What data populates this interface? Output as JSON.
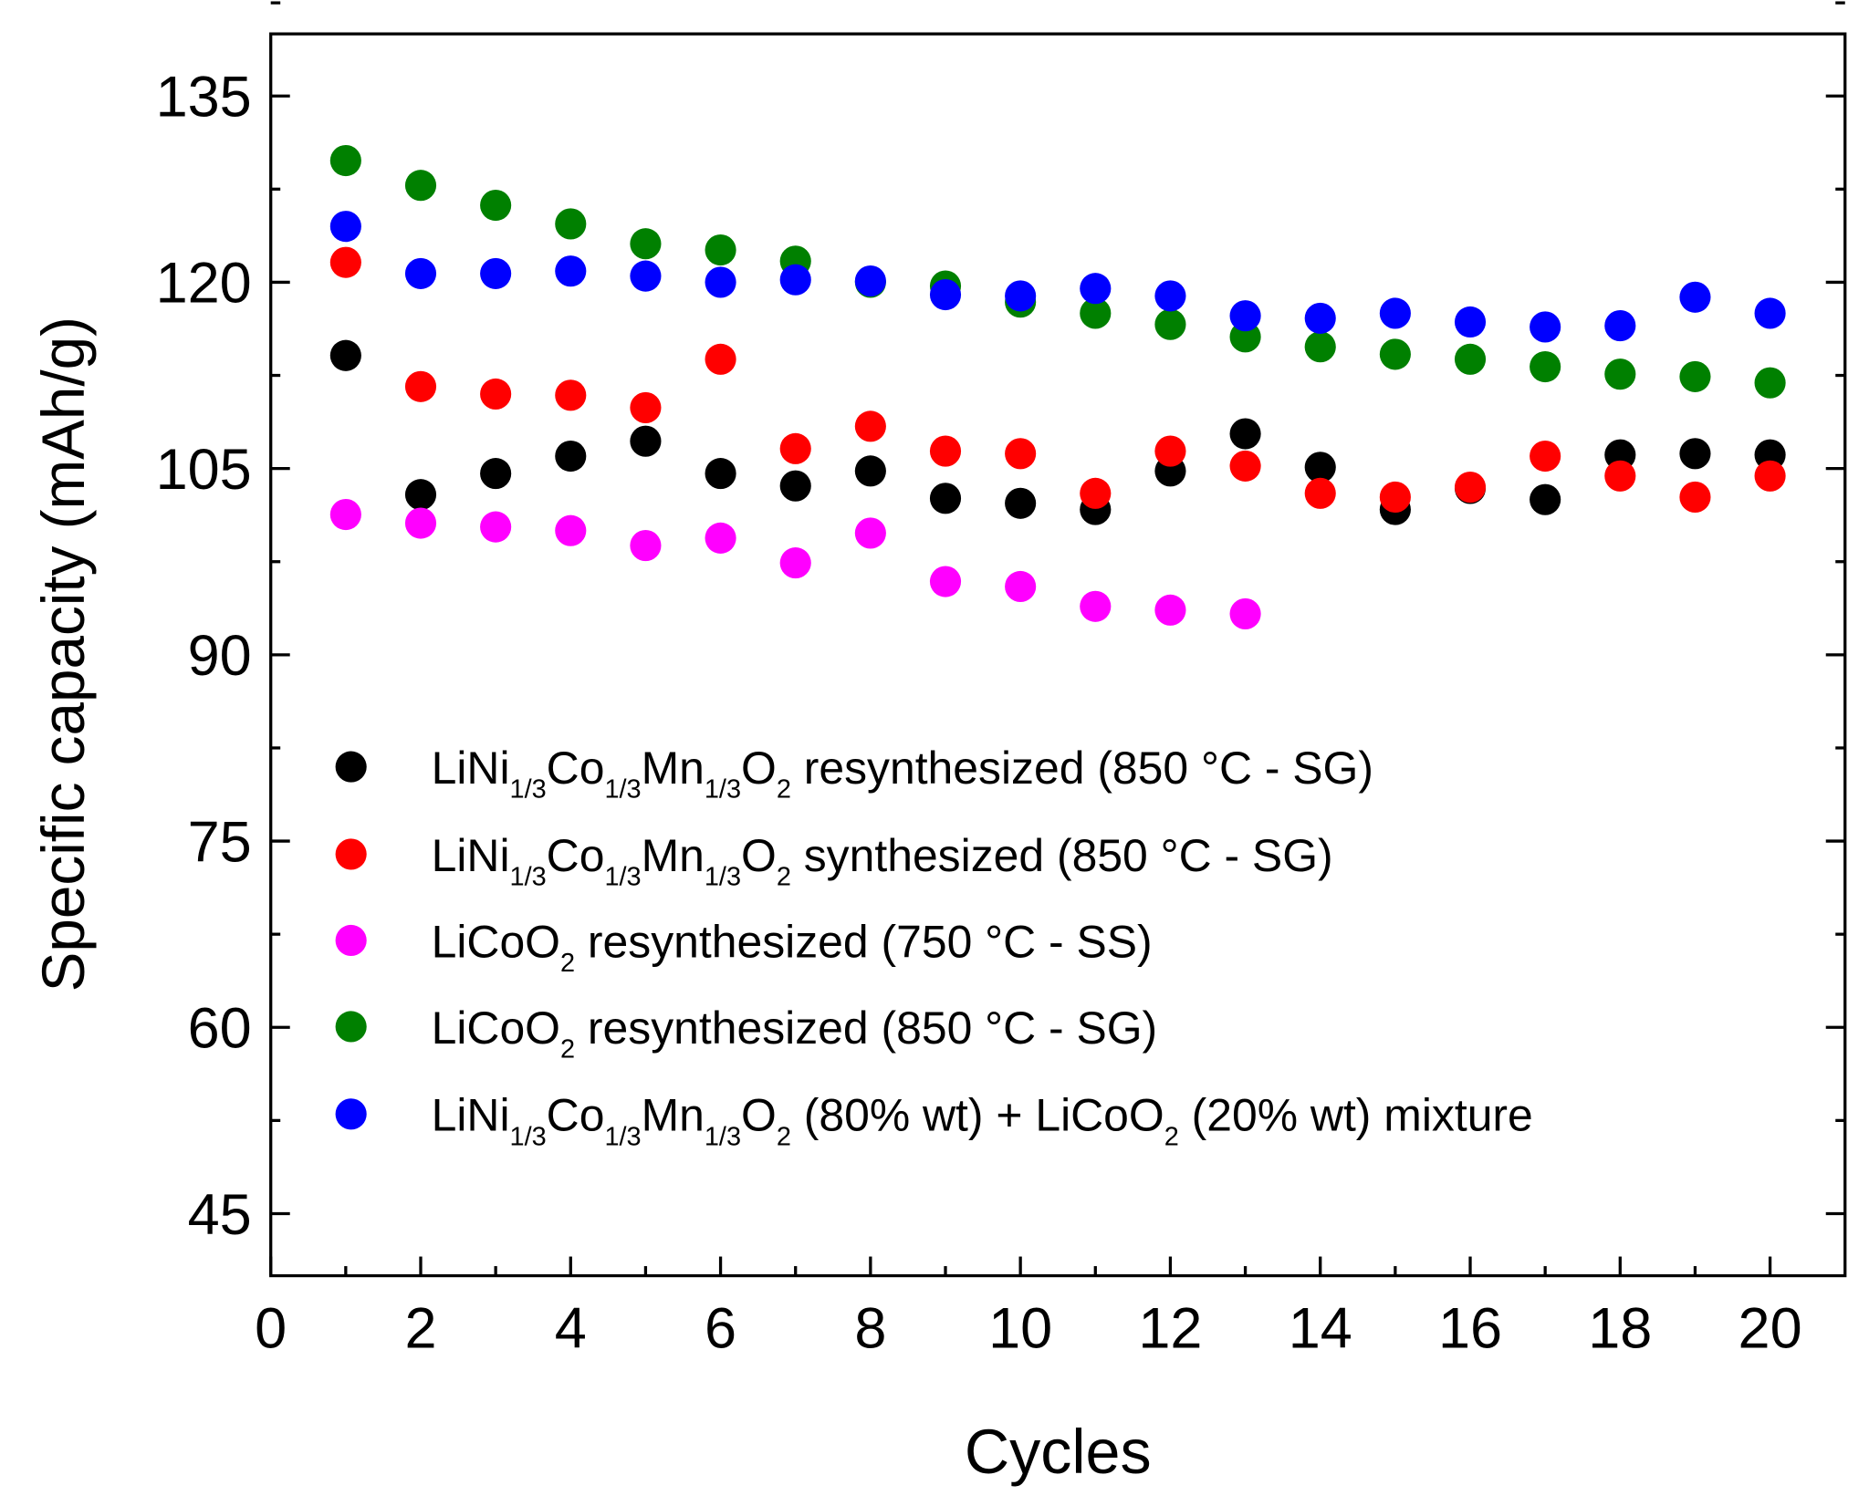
{
  "chart_data": {
    "type": "scatter",
    "title": "",
    "xlabel": "Cycles",
    "ylabel": "Specific capacity (mAh/g)",
    "xlim": [
      0,
      21
    ],
    "ylim": [
      40,
      140
    ],
    "xticks": [
      0,
      2,
      4,
      6,
      8,
      10,
      12,
      14,
      16,
      18,
      20
    ],
    "yticks": [
      45,
      60,
      75,
      90,
      105,
      120,
      135
    ],
    "legend_position": "lower-center inside plot",
    "grid": false,
    "series": [
      {
        "name": "LiNi1/3Co1/3Mn1/3O2 resynthesized  (850 °C - SG)",
        "label_parts": [
          [
            "LiNi",
            ""
          ],
          [
            "1/3",
            "sub"
          ],
          [
            "Co",
            ""
          ],
          [
            "1/3",
            "sub"
          ],
          [
            "Mn",
            ""
          ],
          [
            "1/3",
            "sub"
          ],
          [
            "O",
            ""
          ],
          [
            "2",
            "sub"
          ],
          [
            " resynthesized  (850 °C - SG)",
            ""
          ]
        ],
        "color": "#000000",
        "x": [
          1,
          2,
          3,
          4,
          5,
          6,
          7,
          8,
          9,
          10,
          11,
          12,
          13,
          14,
          15,
          16,
          17,
          18,
          19,
          20
        ],
        "y": [
          114.1,
          102.9,
          104.6,
          106.0,
          107.2,
          104.6,
          103.6,
          104.8,
          102.6,
          102.2,
          101.7,
          104.8,
          107.8,
          105.1,
          101.7,
          103.4,
          102.5,
          106.1,
          106.2,
          106.1
        ]
      },
      {
        "name": "LiNi1/3Co1/3Mn1/3O2 synthesized (850 °C - SG)",
        "label_parts": [
          [
            "LiNi",
            ""
          ],
          [
            "1/3",
            "sub"
          ],
          [
            "Co",
            ""
          ],
          [
            "1/3",
            "sub"
          ],
          [
            "Mn",
            ""
          ],
          [
            "1/3",
            "sub"
          ],
          [
            "O",
            ""
          ],
          [
            "2",
            "sub"
          ],
          [
            " synthesized (850 °C - SG)",
            ""
          ]
        ],
        "color": "#ff0000",
        "x": [
          1,
          2,
          3,
          4,
          5,
          6,
          7,
          8,
          9,
          10,
          11,
          12,
          13,
          14,
          15,
          16,
          17,
          18,
          19,
          20
        ],
        "y": [
          121.6,
          111.6,
          111.0,
          110.9,
          109.9,
          113.8,
          106.6,
          108.4,
          106.4,
          106.2,
          103.0,
          106.4,
          105.2,
          103.0,
          102.7,
          103.5,
          106.0,
          104.4,
          102.7,
          104.4
        ]
      },
      {
        "name": "LiCoO2 resynthesized (750 °C - SS)",
        "label_parts": [
          [
            "LiCoO",
            ""
          ],
          [
            "2",
            "sub"
          ],
          [
            " resynthesized (750 °C - SS)",
            ""
          ]
        ],
        "color": "#ff00ff",
        "x": [
          1,
          2,
          3,
          4,
          5,
          6,
          7,
          8,
          9,
          10,
          11,
          12,
          13
        ],
        "y": [
          101.3,
          100.6,
          100.3,
          100.0,
          98.8,
          99.4,
          97.4,
          99.8,
          95.9,
          95.5,
          93.9,
          93.6,
          93.3
        ]
      },
      {
        "name": "LiCoO2 resynthesized (850 °C - SG)",
        "label_parts": [
          [
            "LiCoO",
            ""
          ],
          [
            "2",
            "sub"
          ],
          [
            " resynthesized (850 °C - SG)",
            ""
          ]
        ],
        "color": "#008000",
        "x": [
          1,
          2,
          3,
          4,
          5,
          6,
          7,
          8,
          9,
          10,
          11,
          12,
          13,
          14,
          15,
          16,
          17,
          18,
          19,
          20
        ],
        "y": [
          129.8,
          127.8,
          126.2,
          124.7,
          123.1,
          122.6,
          121.7,
          120.0,
          119.7,
          118.4,
          117.5,
          116.6,
          115.6,
          114.8,
          114.2,
          113.8,
          113.2,
          112.6,
          112.4,
          111.9
        ]
      },
      {
        "name": "LiNi1/3Co1/3Mn1/3O2 (80% wt) + LiCoO2 (20% wt) mixture",
        "label_parts": [
          [
            "LiNi",
            ""
          ],
          [
            "1/3",
            "sub"
          ],
          [
            "Co",
            ""
          ],
          [
            "1/3",
            "sub"
          ],
          [
            "Mn",
            ""
          ],
          [
            "1/3",
            "sub"
          ],
          [
            "O",
            ""
          ],
          [
            "2",
            "sub"
          ],
          [
            " (80% wt) + LiCoO",
            ""
          ],
          [
            "2",
            "sub"
          ],
          [
            " (20% wt) mixture",
            ""
          ]
        ],
        "color": "#0000ff",
        "x": [
          1,
          2,
          3,
          4,
          5,
          6,
          7,
          8,
          9,
          10,
          11,
          12,
          13,
          14,
          15,
          16,
          17,
          18,
          19,
          20
        ],
        "y": [
          124.5,
          120.7,
          120.7,
          120.9,
          120.5,
          120.0,
          120.2,
          120.1,
          119.0,
          118.9,
          119.5,
          118.9,
          117.3,
          117.1,
          117.5,
          116.8,
          116.4,
          116.5,
          118.8,
          117.5
        ]
      }
    ]
  }
}
